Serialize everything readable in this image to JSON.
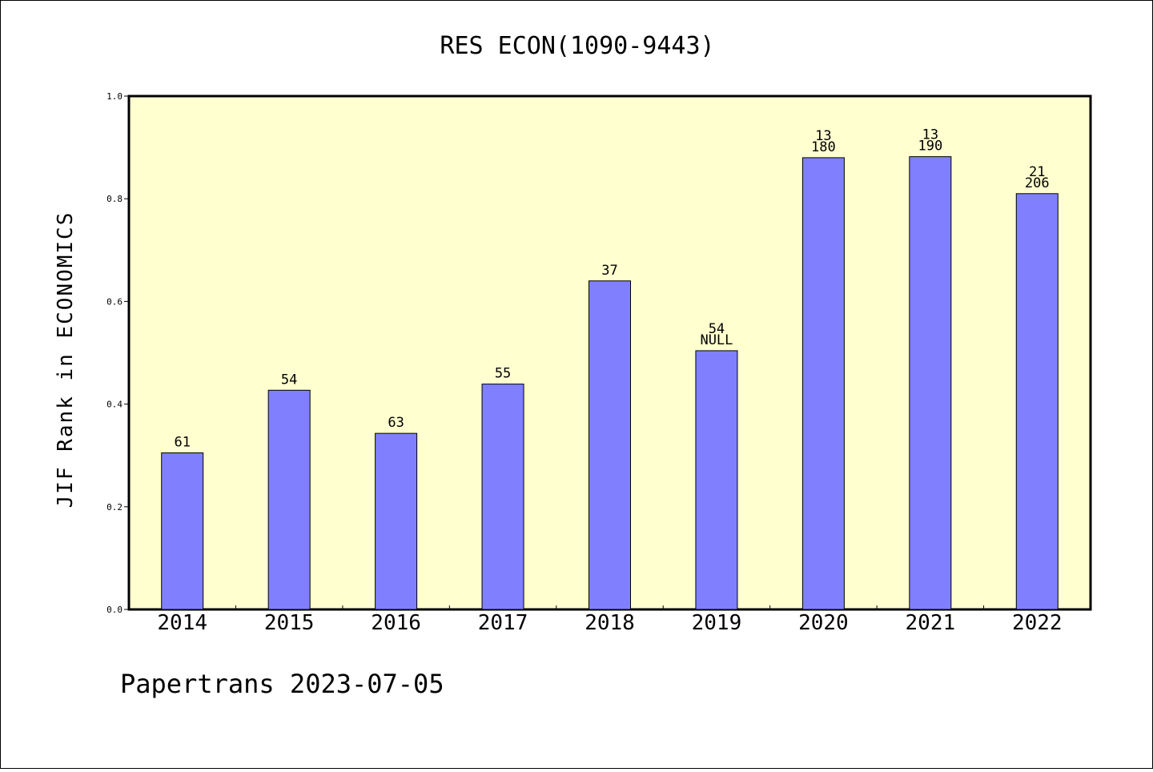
{
  "chart_data": {
    "type": "bar",
    "title": "RES ECON(1090-9443)",
    "xlabel": "",
    "ylabel": "JIF Rank in ECONOMICS",
    "ylim": [
      0.0,
      1.0
    ],
    "yticks": [
      "0.0",
      "0.2",
      "0.4",
      "0.6",
      "0.8",
      "1.0"
    ],
    "categories": [
      "2014",
      "2015",
      "2016",
      "2017",
      "2018",
      "2019",
      "2020",
      "2021",
      "2022"
    ],
    "values": [
      0.305,
      0.427,
      0.343,
      0.439,
      0.64,
      0.504,
      0.88,
      0.882,
      0.81
    ],
    "labels": [
      [
        "61"
      ],
      [
        "54"
      ],
      [
        "63"
      ],
      [
        "55"
      ],
      [
        "37"
      ],
      [
        "54",
        "NULL"
      ],
      [
        "13",
        "180"
      ],
      [
        "13",
        "190"
      ],
      [
        "21",
        "206"
      ]
    ],
    "grid": false,
    "legend": "none",
    "bar_color": "#8080ff",
    "plot_background": "#ffffd0"
  },
  "footer": {
    "text": "Papertrans 2023-07-05"
  }
}
